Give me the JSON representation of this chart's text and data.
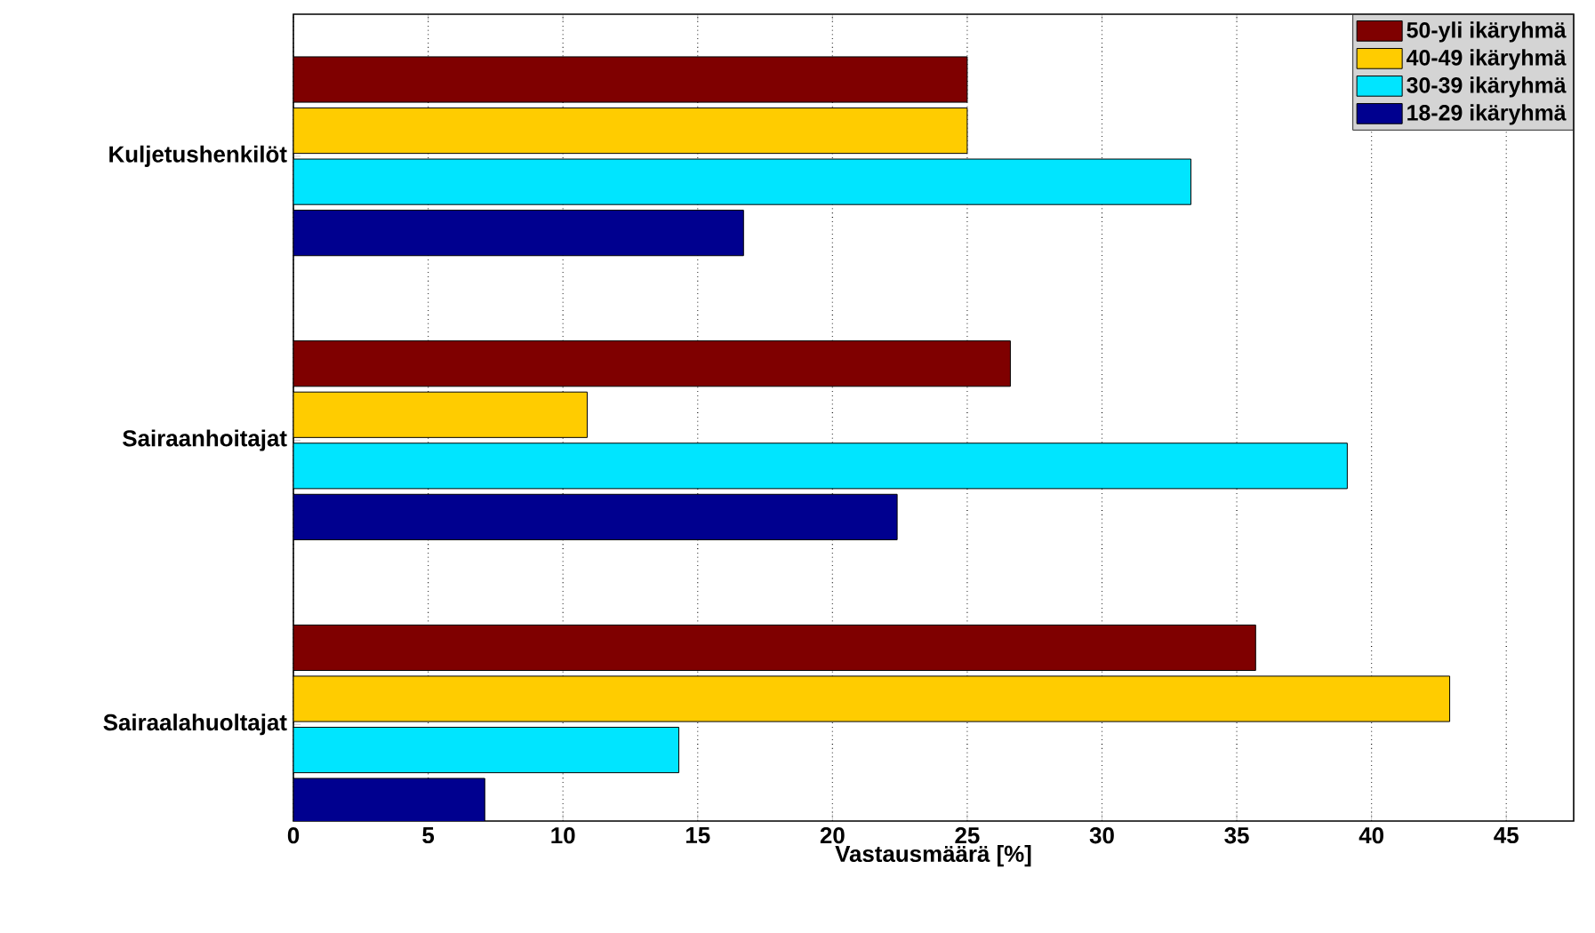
{
  "chart_data": {
    "type": "bar",
    "orientation": "horizontal",
    "xlabel": "Vastausmäärä [%]",
    "categories": [
      "Kuljetushenkilöt",
      "Sairaanhoitajat",
      "Sairaalahuoltajat"
    ],
    "series": [
      {
        "name": "18-29 ikäryhmä",
        "color": "#00008f",
        "values": [
          16.7,
          22.4,
          7.1
        ]
      },
      {
        "name": "30-39 ikäryhmä",
        "color": "#00e5ff",
        "values": [
          33.3,
          39.1,
          14.3
        ]
      },
      {
        "name": "40-49 ikäryhmä",
        "color": "#ffcc00",
        "values": [
          25,
          10.9,
          42.9
        ]
      },
      {
        "name": "50-yli ikäryhmä",
        "color": "#7f0000",
        "values": [
          25,
          26.6,
          35.7
        ]
      }
    ],
    "xlim": [
      0,
      47.5
    ],
    "xticks": [
      0,
      5,
      10,
      15,
      20,
      25,
      30,
      35,
      40,
      45
    ],
    "grid": "x",
    "legend": "top right"
  }
}
